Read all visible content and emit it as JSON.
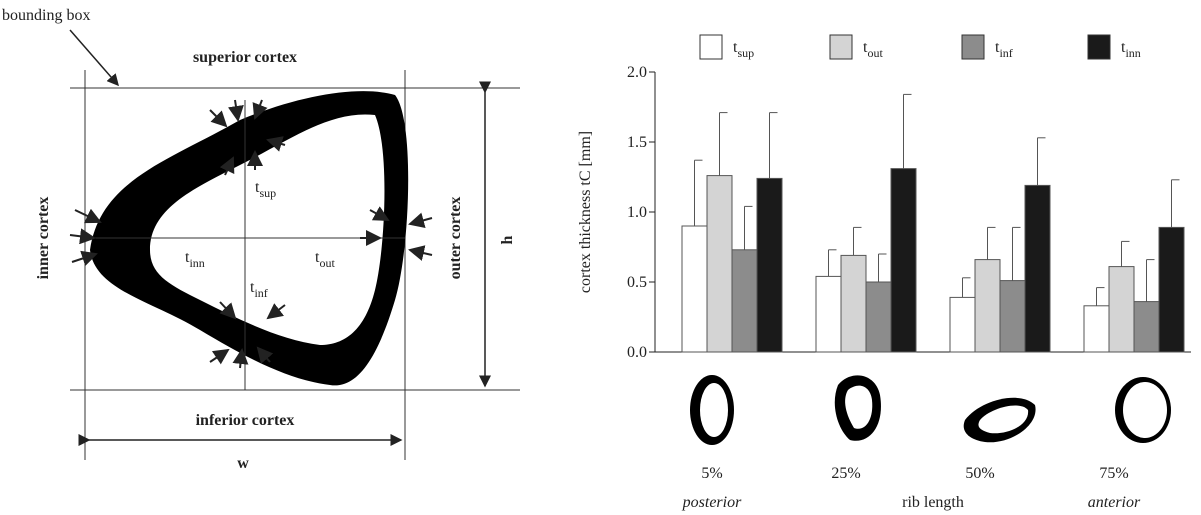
{
  "diagram": {
    "bounding_box": "bounding box",
    "superior": "superior cortex",
    "inferior": "inferior cortex",
    "inner": "inner cortex",
    "outer": "outer cortex",
    "h": "h",
    "w": "w",
    "t_sup": "tsup",
    "t_inn": "tinn",
    "t_out": "tout",
    "t_inf": "tinf"
  },
  "chart_data": {
    "type": "bar",
    "ylabel": "cortex thickness tC [mm]",
    "xlabel": "rib length",
    "categories": [
      "5%",
      "25%",
      "50%",
      "75%"
    ],
    "sublabels": [
      "posterior",
      null,
      null,
      "anterior"
    ],
    "series": [
      {
        "name": "tsup",
        "color": "#ffffff",
        "values": [
          0.9,
          0.54,
          0.39,
          0.33
        ],
        "errors": [
          0.47,
          0.19,
          0.14,
          0.13
        ]
      },
      {
        "name": "tout",
        "color": "#d4d4d4",
        "values": [
          1.26,
          0.69,
          0.66,
          0.61
        ],
        "errors": [
          0.45,
          0.2,
          0.23,
          0.18
        ]
      },
      {
        "name": "tinf",
        "color": "#8c8c8c",
        "values": [
          0.73,
          0.5,
          0.51,
          0.36
        ],
        "errors": [
          0.31,
          0.2,
          0.38,
          0.3
        ]
      },
      {
        "name": "tinn",
        "color": "#1a1a1a",
        "values": [
          1.24,
          1.31,
          1.19,
          0.89
        ],
        "errors": [
          0.47,
          0.53,
          0.34,
          0.34
        ]
      }
    ],
    "ylim": [
      0,
      2
    ],
    "yticks": [
      {
        "value": 0,
        "label": "0.0"
      },
      0.5,
      {
        "value": 1,
        "label": "1.0"
      },
      1.5,
      {
        "value": 2,
        "label": "2.0"
      }
    ]
  }
}
